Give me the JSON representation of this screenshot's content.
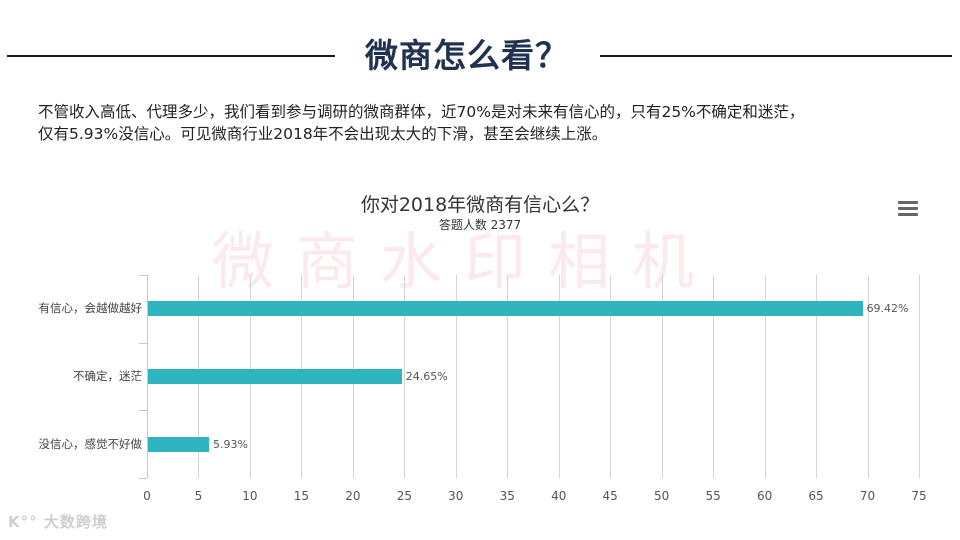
{
  "header": {
    "title": "微商怎么看？"
  },
  "intro": {
    "line1": "不管收入高低、代理多少，我们看到参与调研的微商群体，近70%是对未来有信心的，只有25%不确定和迷茫，",
    "line2": "仅有5.93%没信心。可见微商行业2018年不会出现太大的下滑，甚至会继续上涨。"
  },
  "watermark": "微商水印相机",
  "footer": {
    "logo_text": "K°° 大数跨境"
  },
  "menu_icon": "hamburger-menu-icon",
  "colors": {
    "bar": "#2fb5c0",
    "heading": "#1f3350",
    "watermark": "#e87882"
  },
  "chart_data": {
    "type": "bar",
    "orientation": "horizontal",
    "title": "你对2018年微商有信心么？",
    "subtitle": "答题人数 2377",
    "categories": [
      "有信心，会越做越好",
      "不确定，迷茫",
      "没信心，感觉不好做"
    ],
    "values": [
      69.42,
      24.65,
      5.93
    ],
    "value_labels": [
      "69.42%",
      "24.65%",
      "5.93%"
    ],
    "xlabel": "",
    "ylabel": "",
    "xlim": [
      0,
      75
    ],
    "xticks": [
      "0",
      "5",
      "10",
      "15",
      "20",
      "25",
      "30",
      "35",
      "40",
      "45",
      "50",
      "55",
      "60",
      "65",
      "70",
      "75"
    ],
    "grid": true,
    "legend": "none"
  }
}
